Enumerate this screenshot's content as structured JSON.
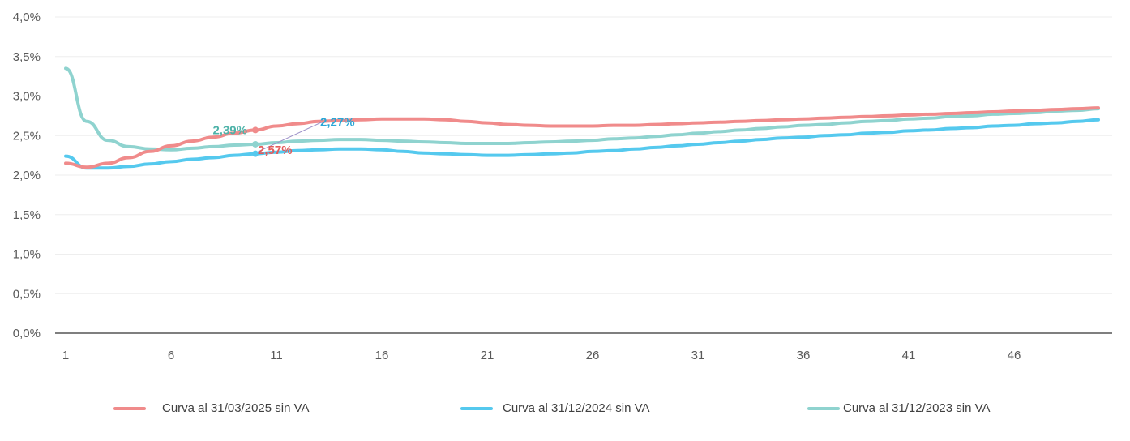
{
  "chart_data": {
    "type": "line",
    "x": [
      1,
      2,
      3,
      4,
      5,
      6,
      7,
      8,
      9,
      10,
      11,
      12,
      13,
      14,
      15,
      16,
      17,
      18,
      19,
      20,
      21,
      22,
      23,
      24,
      25,
      26,
      27,
      28,
      29,
      30,
      31,
      32,
      33,
      34,
      35,
      36,
      37,
      38,
      39,
      40,
      41,
      42,
      43,
      44,
      45,
      46,
      47,
      48,
      49,
      50
    ],
    "x_ticks": [
      1,
      6,
      11,
      16,
      21,
      26,
      31,
      36,
      41,
      46
    ],
    "y_ticks": [
      0,
      0.5,
      1.0,
      1.5,
      2.0,
      2.5,
      3.0,
      3.5,
      4.0
    ],
    "y_tick_labels": [
      "0,0%",
      "0,5%",
      "1,0%",
      "1,5%",
      "2,0%",
      "2,5%",
      "3,0%",
      "3,5%",
      "4,0%"
    ],
    "ylim": [
      0,
      4.0
    ],
    "grid": true,
    "legend_position": "bottom",
    "series": [
      {
        "name": "Curva al 31/03/2025 sin VA",
        "color": "#f08b8b",
        "values": [
          2.15,
          2.1,
          2.15,
          2.22,
          2.3,
          2.37,
          2.43,
          2.48,
          2.53,
          2.57,
          2.62,
          2.65,
          2.68,
          2.69,
          2.7,
          2.71,
          2.71,
          2.71,
          2.7,
          2.68,
          2.66,
          2.64,
          2.63,
          2.62,
          2.62,
          2.62,
          2.63,
          2.63,
          2.64,
          2.65,
          2.66,
          2.67,
          2.68,
          2.69,
          2.7,
          2.71,
          2.72,
          2.73,
          2.74,
          2.75,
          2.76,
          2.77,
          2.78,
          2.79,
          2.8,
          2.81,
          2.82,
          2.83,
          2.84,
          2.85
        ]
      },
      {
        "name": "Curva al 31/12/2024 sin VA",
        "color": "#55c9ee",
        "values": [
          2.24,
          2.09,
          2.09,
          2.11,
          2.14,
          2.17,
          2.2,
          2.22,
          2.25,
          2.27,
          2.29,
          2.31,
          2.32,
          2.33,
          2.33,
          2.32,
          2.3,
          2.28,
          2.27,
          2.26,
          2.25,
          2.25,
          2.26,
          2.27,
          2.28,
          2.3,
          2.31,
          2.33,
          2.35,
          2.37,
          2.39,
          2.41,
          2.43,
          2.45,
          2.47,
          2.48,
          2.5,
          2.51,
          2.53,
          2.54,
          2.56,
          2.57,
          2.59,
          2.6,
          2.62,
          2.63,
          2.65,
          2.66,
          2.68,
          2.7
        ]
      },
      {
        "name": "Curva al 31/12/2023 sin VA",
        "color": "#8fd3cf",
        "values": [
          3.35,
          2.68,
          2.44,
          2.36,
          2.33,
          2.32,
          2.34,
          2.36,
          2.38,
          2.39,
          2.41,
          2.43,
          2.44,
          2.45,
          2.45,
          2.44,
          2.43,
          2.42,
          2.41,
          2.4,
          2.4,
          2.4,
          2.41,
          2.42,
          2.43,
          2.44,
          2.46,
          2.47,
          2.49,
          2.51,
          2.53,
          2.55,
          2.57,
          2.59,
          2.61,
          2.63,
          2.64,
          2.66,
          2.68,
          2.69,
          2.71,
          2.72,
          2.74,
          2.75,
          2.77,
          2.78,
          2.79,
          2.81,
          2.82,
          2.84
        ]
      }
    ],
    "annotations": [
      {
        "text": "2,39%",
        "x": 10,
        "color": "#4fb3a9"
      },
      {
        "text": "2,57%",
        "x": 10,
        "color": "#e45a5a"
      },
      {
        "text": "2,27%",
        "x": 10,
        "color": "#2aa6d6"
      }
    ]
  }
}
